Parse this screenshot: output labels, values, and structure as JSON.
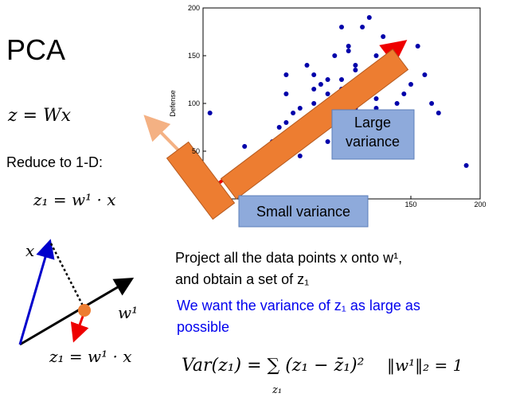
{
  "slide": {
    "title": "PCA",
    "eq_z": "z = Wx",
    "reduce": "Reduce to 1-D:",
    "eq_z1": "z₁ = w¹ · x",
    "diagram_x": "x",
    "diagram_w": "w¹",
    "diagram_eq": "z₁ = w¹ · x",
    "project_1": "Project all the data points x onto w¹,",
    "project_2": "and obtain a set of z₁",
    "want_1": "We want the variance of z₁ as large as",
    "want_2": "possible",
    "var_eq": "Var(z₁) = ∑ (z₁ − z̄₁)²",
    "var_sum_index": "z₁",
    "norm_eq": "‖w¹‖₂ = 1",
    "large_variance": "Large variance",
    "small_variance": "Small variance"
  },
  "chart_data": {
    "type": "scatter",
    "y_label": "Defense",
    "color": "#0000aa",
    "x": [
      5,
      30,
      45,
      50,
      55,
      60,
      60,
      65,
      70,
      70,
      75,
      80,
      80,
      85,
      85,
      90,
      90,
      95,
      95,
      100,
      100,
      105,
      105,
      110,
      110,
      115,
      115,
      120,
      120,
      125,
      125,
      130,
      130,
      135,
      140,
      140,
      145,
      150,
      155,
      160,
      165,
      170,
      190,
      60,
      75,
      90,
      100,
      110,
      120,
      130,
      100,
      85,
      70,
      95,
      115,
      125,
      140,
      105,
      80,
      65
    ],
    "y": [
      90,
      55,
      40,
      60,
      75,
      80,
      110,
      50,
      65,
      95,
      70,
      100,
      130,
      85,
      120,
      60,
      110,
      90,
      150,
      80,
      125,
      100,
      160,
      95,
      140,
      110,
      180,
      120,
      190,
      95,
      150,
      130,
      170,
      140,
      100,
      160,
      110,
      120,
      160,
      130,
      100,
      90,
      35,
      130,
      140,
      125,
      115,
      135,
      85,
      120,
      180,
      75,
      45,
      65,
      70,
      105,
      130,
      155,
      115,
      90
    ],
    "xlim": [
      0,
      200
    ],
    "ylim": [
      0,
      200
    ],
    "xticks": [
      150,
      200
    ],
    "yticks": [
      50,
      100,
      150,
      200
    ]
  }
}
